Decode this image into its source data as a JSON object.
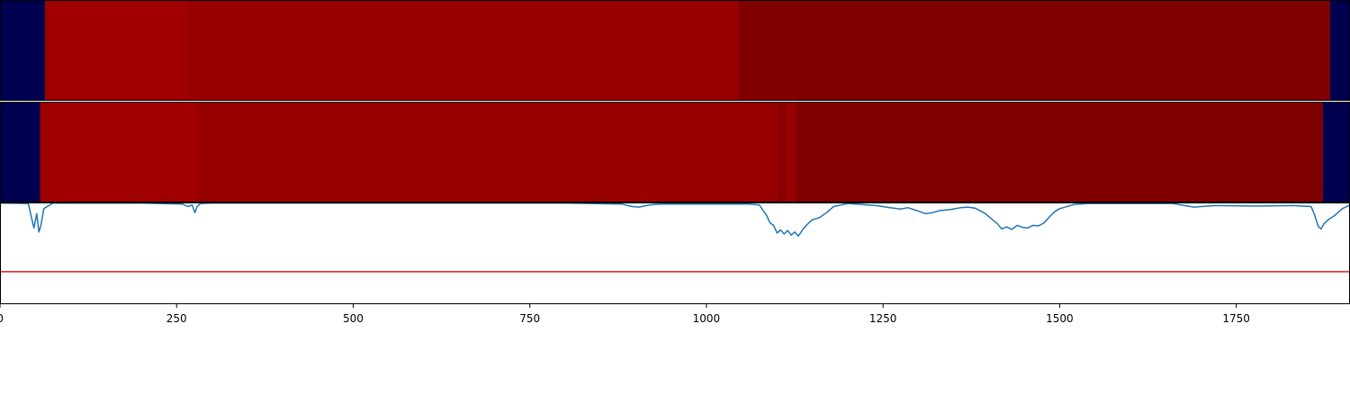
{
  "chart_data": [
    {
      "type": "heatmap",
      "panel": "top",
      "xlim": [
        0,
        1911
      ],
      "segments": [
        {
          "start": 0,
          "end": 64,
          "color": "#000050"
        },
        {
          "start": 64,
          "end": 264,
          "color": "#a00000"
        },
        {
          "start": 264,
          "end": 1045,
          "color": "#980000"
        },
        {
          "start": 1045,
          "end": 1883,
          "color": "#800000"
        },
        {
          "start": 1883,
          "end": 1911,
          "color": "#000050"
        }
      ]
    },
    {
      "type": "heatmap",
      "panel": "middle",
      "xlim": [
        0,
        1911
      ],
      "segments": [
        {
          "start": 0,
          "end": 57,
          "color": "#000050"
        },
        {
          "start": 57,
          "end": 280,
          "color": "#a00000"
        },
        {
          "start": 280,
          "end": 1101,
          "color": "#980000"
        },
        {
          "start": 1101,
          "end": 1112,
          "color": "#880000"
        },
        {
          "start": 1112,
          "end": 1127,
          "color": "#980000"
        },
        {
          "start": 1127,
          "end": 1873,
          "color": "#800000"
        },
        {
          "start": 1873,
          "end": 1911,
          "color": "#000050"
        }
      ]
    },
    {
      "type": "line",
      "panel": "bottom",
      "xlim": [
        0,
        1911
      ],
      "ylim": [
        -1.0,
        1.0
      ],
      "xticks": [
        0,
        250,
        500,
        750,
        1000,
        1250,
        1500,
        1750
      ],
      "xtick_labels": [
        "0",
        "250",
        "500",
        "750",
        "1000",
        "1250",
        "1500",
        "1750"
      ],
      "threshold": {
        "value": -0.36,
        "color": "#e41a1c"
      },
      "series": [
        {
          "color": "#1f77b4",
          "x": [
            0,
            40,
            48,
            52,
            55,
            58,
            62,
            75,
            200,
            258,
            266,
            272,
            276,
            279,
            284,
            300,
            450,
            600,
            800,
            880,
            895,
            905,
            915,
            925,
            940,
            1000,
            1060,
            1075,
            1080,
            1085,
            1090,
            1095,
            1100,
            1105,
            1110,
            1115,
            1120,
            1125,
            1130,
            1138,
            1145,
            1150,
            1160,
            1170,
            1180,
            1200,
            1240,
            1260,
            1275,
            1285,
            1300,
            1310,
            1320,
            1330,
            1345,
            1360,
            1370,
            1380,
            1395,
            1405,
            1412,
            1418,
            1425,
            1432,
            1440,
            1448,
            1455,
            1462,
            1470,
            1478,
            1485,
            1493,
            1500,
            1520,
            1540,
            1660,
            1690,
            1720,
            1780,
            1830,
            1856,
            1861,
            1866,
            1870,
            1874,
            1880,
            1890,
            1900,
            1911
          ],
          "y": [
            0.99,
            0.98,
            0.5,
            0.78,
            0.42,
            0.55,
            0.88,
            0.99,
            0.99,
            0.97,
            0.92,
            0.95,
            0.8,
            0.92,
            0.98,
            0.99,
            0.99,
            0.99,
            0.99,
            0.97,
            0.92,
            0.91,
            0.94,
            0.96,
            0.97,
            0.97,
            0.97,
            0.95,
            0.85,
            0.75,
            0.6,
            0.55,
            0.4,
            0.46,
            0.38,
            0.45,
            0.36,
            0.42,
            0.34,
            0.5,
            0.6,
            0.66,
            0.7,
            0.8,
            0.92,
            0.98,
            0.94,
            0.9,
            0.87,
            0.9,
            0.83,
            0.78,
            0.8,
            0.84,
            0.86,
            0.9,
            0.91,
            0.89,
            0.78,
            0.66,
            0.58,
            0.48,
            0.52,
            0.47,
            0.55,
            0.51,
            0.5,
            0.55,
            0.54,
            0.6,
            0.71,
            0.82,
            0.88,
            0.96,
            0.98,
            0.98,
            0.91,
            0.94,
            0.93,
            0.94,
            0.92,
            0.75,
            0.53,
            0.48,
            0.58,
            0.66,
            0.75,
            0.88,
            0.95
          ]
        }
      ]
    }
  ]
}
